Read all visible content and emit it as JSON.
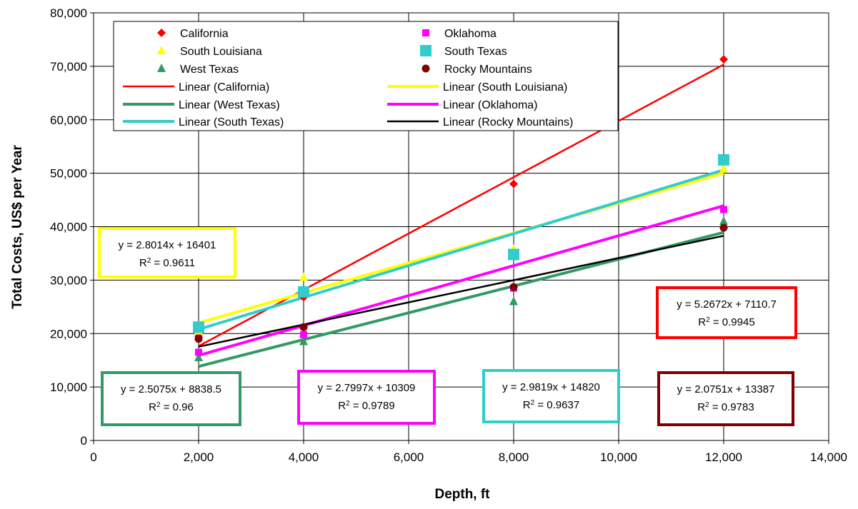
{
  "chart_data": {
    "type": "scatter",
    "title": "",
    "xlabel": "Depth, ft",
    "ylabel": "Total Costs, US$ per Year",
    "xlim": [
      0,
      14000
    ],
    "ylim": [
      0,
      80000
    ],
    "x_ticks": [
      0,
      2000,
      4000,
      6000,
      8000,
      10000,
      12000,
      14000
    ],
    "x_tick_labels": [
      "0",
      "2,000",
      "4,000",
      "6,000",
      "8,000",
      "10,000",
      "12,000",
      "14,000"
    ],
    "y_ticks": [
      0,
      10000,
      20000,
      30000,
      40000,
      50000,
      60000,
      70000,
      80000
    ],
    "y_tick_labels": [
      "0",
      "10,000",
      "20,000",
      "30,000",
      "40,000",
      "50,000",
      "60,000",
      "70,000",
      "80,000"
    ],
    "grid": true,
    "legend_position": "top-left",
    "series": [
      {
        "name": "California",
        "marker": "diamond",
        "color": "#ff0000",
        "x": [
          2000,
          4000,
          8000,
          12000
        ],
        "y": [
          19500,
          26800,
          48000,
          71300
        ],
        "trend_label": "Linear (California)",
        "trend_color": "#ff0000",
        "trend_width": "thin",
        "slope": 5.2672,
        "intercept": 7110.7,
        "equation": "y = 5.2672x + 7110.7",
        "r2_value": "= 0.9945"
      },
      {
        "name": "South Louisiana",
        "marker": "triangle",
        "color": "#ffff00",
        "x": [
          2000,
          4000,
          8000,
          12000
        ],
        "y": [
          20500,
          30500,
          35800,
          50800
        ],
        "trend_label": "Linear (South Louisiana)",
        "trend_color": "#ffff00",
        "trend_width": "thick",
        "slope": 2.8014,
        "intercept": 16401,
        "equation": "y = 2.8014x + 16401",
        "r2_value": "= 0.9611"
      },
      {
        "name": "West Texas",
        "marker": "triangle",
        "color": "#339966",
        "x": [
          2000,
          4000,
          8000,
          12000
        ],
        "y": [
          15500,
          18500,
          26000,
          41000
        ],
        "trend_label": "Linear (West Texas)",
        "trend_color": "#339966",
        "trend_width": "thick",
        "slope": 2.5075,
        "intercept": 8838.5,
        "equation": "y = 2.5075x + 8838.5",
        "r2_value": "= 0.96"
      },
      {
        "name": "Oklahoma",
        "marker": "square-small",
        "color": "#ff00ff",
        "x": [
          2000,
          4000,
          8000,
          12000
        ],
        "y": [
          16500,
          19800,
          28500,
          43200
        ],
        "trend_label": "Linear (Oklahoma)",
        "trend_color": "#ff00ff",
        "trend_width": "thick",
        "slope": 2.7997,
        "intercept": 10309,
        "equation": "y = 2.7997x + 10309",
        "r2_value": "= 0.9789"
      },
      {
        "name": "South Texas",
        "marker": "square",
        "color": "#33cccc",
        "x": [
          2000,
          4000,
          8000,
          12000
        ],
        "y": [
          21200,
          27800,
          34800,
          52500
        ],
        "trend_label": "Linear (South Texas)",
        "trend_color": "#33cccc",
        "trend_width": "thick",
        "slope": 2.9819,
        "intercept": 14820,
        "equation": "y = 2.9819x + 14820",
        "r2_value": "= 0.9637"
      },
      {
        "name": "Rocky Mountains",
        "marker": "circle",
        "color": "#800000",
        "x": [
          2000,
          4000,
          8000,
          12000
        ],
        "y": [
          19000,
          21200,
          28700,
          39800
        ],
        "trend_label": "Linear (Rocky Mountains)",
        "trend_color": "#000000",
        "trend_width": "thin",
        "slope": 2.0751,
        "intercept": 13387,
        "equation": "y = 2.0751x + 13387",
        "r2_value": "= 0.9783"
      }
    ],
    "trendline_range": [
      2000,
      12000
    ],
    "r2_label": "R",
    "r2_sup": "2"
  }
}
